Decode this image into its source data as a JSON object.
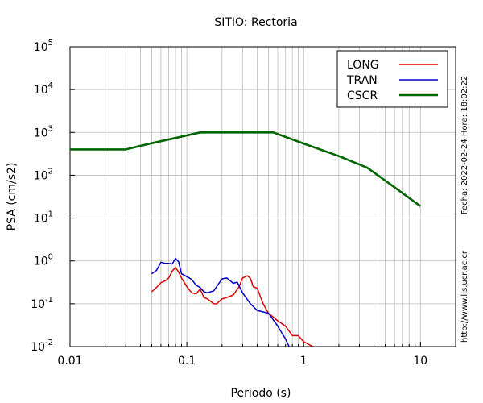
{
  "chart_data": {
    "type": "line",
    "title": "SITIO: Rectoria",
    "xlabel": "Periodo (s)",
    "ylabel": "PSA (cm/s2)",
    "x_scale": "log",
    "y_scale": "log",
    "xlim": [
      0.01,
      20
    ],
    "ylim": [
      0.01,
      100000
    ],
    "grid": true,
    "legend_position": "top-right",
    "x_ticks": [
      {
        "value": 0.01,
        "label": "0.01"
      },
      {
        "value": 0.1,
        "label": "0.1"
      },
      {
        "value": 1,
        "label": "1"
      },
      {
        "value": 10,
        "label": "10"
      }
    ],
    "y_ticks": [
      {
        "value": 0.01,
        "base": "10",
        "exp": "-2"
      },
      {
        "value": 0.1,
        "base": "10",
        "exp": "-1"
      },
      {
        "value": 1,
        "base": "10",
        "exp": "0"
      },
      {
        "value": 10,
        "base": "10",
        "exp": "1"
      },
      {
        "value": 100,
        "base": "10",
        "exp": "2"
      },
      {
        "value": 1000,
        "base": "10",
        "exp": "3"
      },
      {
        "value": 10000,
        "base": "10",
        "exp": "4"
      },
      {
        "value": 100000,
        "base": "10",
        "exp": "5"
      }
    ],
    "series": [
      {
        "name": "LONG",
        "color": "#dd0000",
        "x": [
          0.05,
          0.055,
          0.06,
          0.065,
          0.07,
          0.075,
          0.08,
          0.085,
          0.09,
          0.1,
          0.11,
          0.12,
          0.13,
          0.14,
          0.15,
          0.17,
          0.18,
          0.2,
          0.22,
          0.25,
          0.28,
          0.3,
          0.33,
          0.35,
          0.37,
          0.4,
          0.45,
          0.5,
          0.6,
          0.7,
          0.8,
          0.9,
          1.0,
          1.2
        ],
        "y": [
          0.19,
          0.24,
          0.31,
          0.34,
          0.4,
          0.58,
          0.7,
          0.55,
          0.4,
          0.25,
          0.18,
          0.17,
          0.22,
          0.14,
          0.13,
          0.1,
          0.1,
          0.13,
          0.14,
          0.16,
          0.25,
          0.4,
          0.45,
          0.39,
          0.25,
          0.23,
          0.1,
          0.06,
          0.04,
          0.03,
          0.018,
          0.018,
          0.013,
          0.01
        ]
      },
      {
        "name": "TRAN",
        "color": "#0000cc",
        "x": [
          0.05,
          0.055,
          0.06,
          0.065,
          0.07,
          0.075,
          0.08,
          0.085,
          0.09,
          0.1,
          0.11,
          0.12,
          0.13,
          0.14,
          0.15,
          0.17,
          0.18,
          0.2,
          0.22,
          0.25,
          0.27,
          0.3,
          0.35,
          0.4,
          0.5,
          0.6,
          0.7,
          0.75
        ],
        "y": [
          0.5,
          0.6,
          0.93,
          0.88,
          0.88,
          0.85,
          1.15,
          0.95,
          0.5,
          0.43,
          0.37,
          0.27,
          0.24,
          0.19,
          0.18,
          0.2,
          0.25,
          0.38,
          0.4,
          0.3,
          0.32,
          0.18,
          0.1,
          0.07,
          0.06,
          0.03,
          0.015,
          0.01
        ]
      },
      {
        "name": "CSCR",
        "color": "#006600",
        "x": [
          0.01,
          0.03,
          0.05,
          0.08,
          0.13,
          0.3,
          0.55,
          1.0,
          2.0,
          3.5,
          5.0,
          10.0
        ],
        "y": [
          400,
          400,
          560,
          740,
          1000,
          1000,
          1000,
          550,
          280,
          150,
          75,
          19
        ]
      }
    ],
    "annotations": {
      "date": "Fecha: 2022-02-24 Hora: 18:02:22",
      "url": "http://www.lis.ucr.ac.cr"
    }
  }
}
